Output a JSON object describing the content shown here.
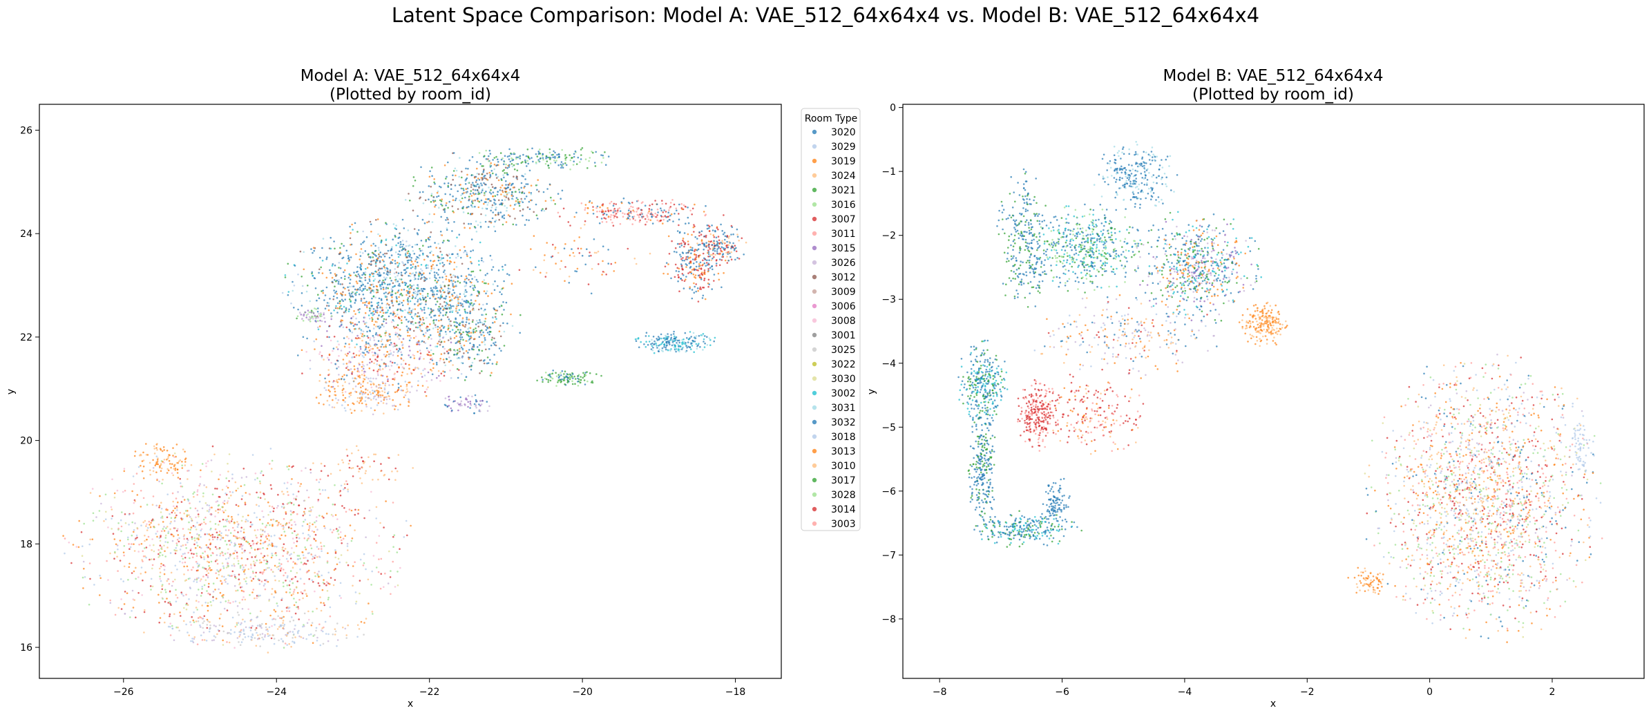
{
  "figure": {
    "suptitle": "Latent Space Comparison: Model A: VAE_512_64x64x4 vs. Model B: VAE_512_64x64x4"
  },
  "legend": {
    "title": "Room Type",
    "entries": [
      {
        "label": "3020",
        "color": "#1f77b4"
      },
      {
        "label": "3029",
        "color": "#aec7e8"
      },
      {
        "label": "3019",
        "color": "#ff7f0e"
      },
      {
        "label": "3024",
        "color": "#ffbb78"
      },
      {
        "label": "3021",
        "color": "#2ca02c"
      },
      {
        "label": "3016",
        "color": "#98df8a"
      },
      {
        "label": "3007",
        "color": "#d62728"
      },
      {
        "label": "3011",
        "color": "#ff9896"
      },
      {
        "label": "3015",
        "color": "#9467bd"
      },
      {
        "label": "3026",
        "color": "#c5b0d5"
      },
      {
        "label": "3012",
        "color": "#8c564b"
      },
      {
        "label": "3009",
        "color": "#c49c94"
      },
      {
        "label": "3006",
        "color": "#e377c2"
      },
      {
        "label": "3008",
        "color": "#f7b6d2"
      },
      {
        "label": "3001",
        "color": "#7f7f7f"
      },
      {
        "label": "3025",
        "color": "#c7c7c7"
      },
      {
        "label": "3022",
        "color": "#bcbd22"
      },
      {
        "label": "3030",
        "color": "#dbdb8d"
      },
      {
        "label": "3002",
        "color": "#17becf"
      },
      {
        "label": "3031",
        "color": "#9edae5"
      },
      {
        "label": "3032",
        "color": "#1f77b4"
      },
      {
        "label": "3018",
        "color": "#aec7e8"
      },
      {
        "label": "3013",
        "color": "#ff7f0e"
      },
      {
        "label": "3010",
        "color": "#ffbb78"
      },
      {
        "label": "3017",
        "color": "#2ca02c"
      },
      {
        "label": "3028",
        "color": "#98df8a"
      },
      {
        "label": "3014",
        "color": "#d62728"
      },
      {
        "label": "3003",
        "color": "#ff9896"
      }
    ]
  },
  "chart_data": [
    {
      "type": "scatter",
      "title": "Model A: VAE_512_64x64x4\n(Plotted by room_id)",
      "title_lines": [
        "Model A: VAE_512_64x64x4",
        "(Plotted by room_id)"
      ],
      "xlabel": "x",
      "ylabel": "y",
      "xlim": [
        -27.1,
        -17.4
      ],
      "ylim": [
        15.4,
        26.5
      ],
      "xticks": [
        -26,
        -24,
        -22,
        -20,
        -18
      ],
      "yticks": [
        16,
        18,
        20,
        22,
        24,
        26
      ],
      "legend_placement": "outside-right",
      "grid": false,
      "point_groups": [
        {
          "cx": -22.4,
          "cy": 23.0,
          "rx": 1.3,
          "ry": 1.1,
          "n": 1300,
          "mix": [
            0,
            0,
            0,
            0,
            20,
            4,
            2,
            1,
            10,
            19,
            0,
            18,
            2
          ]
        },
        {
          "cx": -21.3,
          "cy": 24.8,
          "rx": 0.9,
          "ry": 0.7,
          "n": 500,
          "mix": [
            0,
            0,
            20,
            4,
            2,
            19,
            10
          ]
        },
        {
          "cx": -20.5,
          "cy": 25.45,
          "rx": 0.9,
          "ry": 0.2,
          "n": 160,
          "mix": [
            0,
            20,
            4,
            5
          ]
        },
        {
          "cx": -21.5,
          "cy": 22.2,
          "rx": 0.6,
          "ry": 0.9,
          "n": 350,
          "mix": [
            0,
            20,
            4,
            2,
            10,
            19
          ]
        },
        {
          "cx": -22.6,
          "cy": 21.7,
          "rx": 1.0,
          "ry": 0.8,
          "n": 450,
          "mix": [
            2,
            22,
            3,
            1,
            9,
            13,
            8,
            6,
            0
          ]
        },
        {
          "cx": -23.5,
          "cy": 22.4,
          "rx": 0.25,
          "ry": 0.15,
          "n": 60,
          "mix": [
            9,
            25,
            8
          ]
        },
        {
          "cx": -22.8,
          "cy": 20.9,
          "rx": 0.7,
          "ry": 0.4,
          "n": 200,
          "mix": [
            2,
            3,
            22,
            1,
            9
          ]
        },
        {
          "cx": -21.5,
          "cy": 20.7,
          "rx": 0.3,
          "ry": 0.2,
          "n": 60,
          "mix": [
            8,
            9,
            0
          ]
        },
        {
          "cx": -20.2,
          "cy": 21.2,
          "rx": 0.4,
          "ry": 0.15,
          "n": 110,
          "mix": [
            4,
            24,
            5,
            0
          ]
        },
        {
          "cx": -18.8,
          "cy": 21.9,
          "rx": 0.5,
          "ry": 0.2,
          "n": 200,
          "mix": [
            0,
            20,
            18,
            19
          ]
        },
        {
          "cx": -18.5,
          "cy": 23.5,
          "rx": 0.4,
          "ry": 0.7,
          "n": 250,
          "mix": [
            0,
            20,
            6,
            26,
            2
          ]
        },
        {
          "cx": -19.3,
          "cy": 24.4,
          "rx": 1.0,
          "ry": 0.25,
          "n": 230,
          "mix": [
            6,
            26,
            7,
            27,
            2,
            0
          ]
        },
        {
          "cx": -20.0,
          "cy": 23.5,
          "rx": 0.8,
          "ry": 0.6,
          "n": 70,
          "mix": [
            0,
            6,
            2,
            3
          ]
        },
        {
          "cx": -18.2,
          "cy": 23.8,
          "rx": 0.3,
          "ry": 0.35,
          "n": 150,
          "mix": [
            0,
            20,
            6,
            3
          ]
        },
        {
          "cx": -24.5,
          "cy": 17.9,
          "rx": 2.0,
          "ry": 1.7,
          "n": 1600,
          "mix": [
            3,
            23,
            2,
            22,
            6,
            26,
            7,
            27,
            1,
            21,
            5,
            25,
            9,
            17,
            13
          ]
        },
        {
          "cx": -25.5,
          "cy": 19.6,
          "rx": 0.35,
          "ry": 0.35,
          "n": 90,
          "mix": [
            3,
            2,
            22
          ]
        },
        {
          "cx": -24.2,
          "cy": 16.3,
          "rx": 1.2,
          "ry": 0.35,
          "n": 200,
          "mix": [
            1,
            21,
            9,
            15,
            3
          ]
        },
        {
          "cx": -22.9,
          "cy": 19.5,
          "rx": 0.6,
          "ry": 0.4,
          "n": 60,
          "mix": [
            3,
            23,
            6
          ]
        }
      ]
    },
    {
      "type": "scatter",
      "title": "Model B: VAE_512_64x64x4\n(Plotted by room_id)",
      "title_lines": [
        "Model B: VAE_512_64x64x4",
        "(Plotted by room_id)"
      ],
      "xlabel": "x",
      "ylabel": "y",
      "xlim": [
        -8.6,
        3.5
      ],
      "ylim": [
        -8.93,
        0.05
      ],
      "xticks": [
        -8,
        -6,
        -4,
        -2,
        0,
        2
      ],
      "yticks": [
        -8,
        -7,
        -6,
        -5,
        -4,
        -3,
        -2,
        -1,
        0
      ],
      "grid": false,
      "point_groups": [
        {
          "cx": -5.6,
          "cy": -2.2,
          "rx": 0.8,
          "ry": 0.6,
          "n": 500,
          "mix": [
            0,
            20,
            4,
            18,
            5
          ]
        },
        {
          "cx": -3.8,
          "cy": -2.5,
          "rx": 0.9,
          "ry": 0.8,
          "n": 650,
          "mix": [
            0,
            20,
            4,
            2,
            8,
            9,
            18
          ]
        },
        {
          "cx": -4.8,
          "cy": -1.1,
          "rx": 0.6,
          "ry": 0.5,
          "n": 250,
          "mix": [
            0,
            20,
            19
          ]
        },
        {
          "cx": -6.6,
          "cy": -2.1,
          "rx": 0.4,
          "ry": 1.0,
          "n": 280,
          "mix": [
            0,
            20,
            4
          ]
        },
        {
          "cx": -7.3,
          "cy": -4.3,
          "rx": 0.35,
          "ry": 0.6,
          "n": 300,
          "mix": [
            0,
            20,
            4,
            18
          ]
        },
        {
          "cx": -7.3,
          "cy": -5.6,
          "rx": 0.2,
          "ry": 0.9,
          "n": 250,
          "mix": [
            0,
            20,
            4
          ]
        },
        {
          "cx": -6.6,
          "cy": -6.6,
          "rx": 0.8,
          "ry": 0.25,
          "n": 250,
          "mix": [
            0,
            20,
            4,
            18
          ]
        },
        {
          "cx": -6.1,
          "cy": -6.2,
          "rx": 0.2,
          "ry": 0.4,
          "n": 100,
          "mix": [
            0,
            20
          ]
        },
        {
          "cx": -6.4,
          "cy": -4.8,
          "rx": 0.3,
          "ry": 0.5,
          "n": 250,
          "mix": [
            6,
            26,
            7
          ]
        },
        {
          "cx": -5.5,
          "cy": -4.8,
          "rx": 0.8,
          "ry": 0.6,
          "n": 200,
          "mix": [
            6,
            26,
            7,
            3,
            2
          ]
        },
        {
          "cx": -2.7,
          "cy": -3.4,
          "rx": 0.35,
          "ry": 0.3,
          "n": 200,
          "mix": [
            2,
            22,
            3,
            23
          ]
        },
        {
          "cx": -5.0,
          "cy": -3.6,
          "rx": 1.4,
          "ry": 0.6,
          "n": 250,
          "mix": [
            0,
            2,
            3,
            9,
            6,
            1
          ]
        },
        {
          "cx": 0.9,
          "cy": -6.1,
          "rx": 1.7,
          "ry": 2.0,
          "n": 2000,
          "mix": [
            3,
            23,
            2,
            22,
            6,
            26,
            7,
            27,
            1,
            21,
            5,
            25,
            9,
            0,
            17
          ]
        },
        {
          "cx": -1.0,
          "cy": -7.4,
          "rx": 0.3,
          "ry": 0.2,
          "n": 70,
          "mix": [
            3,
            2,
            22
          ]
        },
        {
          "cx": 2.5,
          "cy": -5.3,
          "rx": 0.2,
          "ry": 0.4,
          "n": 60,
          "mix": [
            1,
            21
          ]
        }
      ]
    }
  ]
}
